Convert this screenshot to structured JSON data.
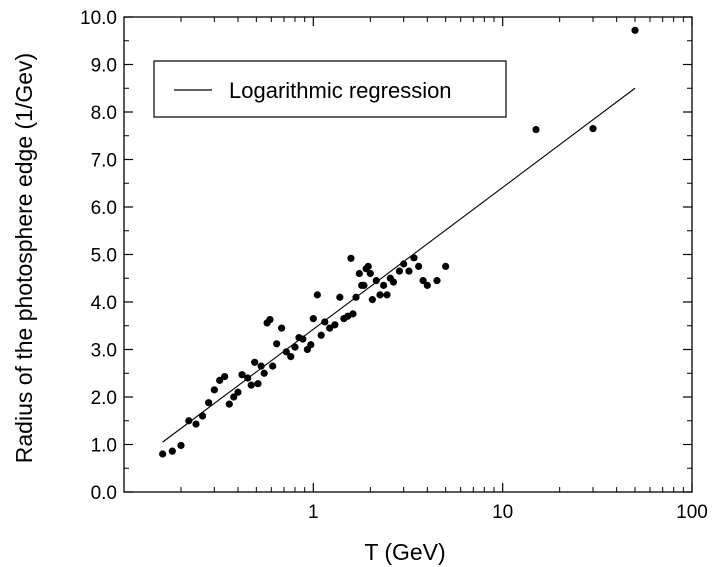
{
  "chart_data": {
    "type": "scatter",
    "title": "",
    "xlabel": "T (GeV)",
    "ylabel": "Radius of the photosphere edge (1/Gev)",
    "xscale": "log",
    "xlim": [
      0.1,
      100
    ],
    "ylim": [
      0.0,
      10.0
    ],
    "x_ticks": [
      {
        "value": 1,
        "label": "1"
      },
      {
        "value": 10,
        "label": "10"
      },
      {
        "value": 100,
        "label": "100"
      }
    ],
    "y_ticks": [
      {
        "value": 0.0,
        "label": "0.0"
      },
      {
        "value": 1.0,
        "label": "1.0"
      },
      {
        "value": 2.0,
        "label": "2.0"
      },
      {
        "value": 3.0,
        "label": "3.0"
      },
      {
        "value": 4.0,
        "label": "4.0"
      },
      {
        "value": 5.0,
        "label": "5.0"
      },
      {
        "value": 6.0,
        "label": "6.0"
      },
      {
        "value": 7.0,
        "label": "7.0"
      },
      {
        "value": 8.0,
        "label": "8.0"
      },
      {
        "value": 9.0,
        "label": "9.0"
      },
      {
        "value": 10.0,
        "label": "10.0"
      }
    ],
    "grid": false,
    "legend": {
      "placement": "top-left",
      "entries": [
        {
          "label": "Logarithmic regression",
          "kind": "line"
        }
      ]
    },
    "series": [
      {
        "kind": "scatter",
        "color": "#000000",
        "points": [
          [
            0.16,
            0.8
          ],
          [
            0.18,
            0.86
          ],
          [
            0.2,
            0.98
          ],
          [
            0.22,
            1.5
          ],
          [
            0.24,
            1.43
          ],
          [
            0.26,
            1.6
          ],
          [
            0.28,
            1.88
          ],
          [
            0.3,
            2.15
          ],
          [
            0.32,
            2.35
          ],
          [
            0.34,
            2.43
          ],
          [
            0.36,
            1.85
          ],
          [
            0.38,
            2.0
          ],
          [
            0.4,
            2.1
          ],
          [
            0.42,
            2.47
          ],
          [
            0.45,
            2.4
          ],
          [
            0.47,
            2.25
          ],
          [
            0.49,
            2.73
          ],
          [
            0.51,
            2.28
          ],
          [
            0.53,
            2.65
          ],
          [
            0.55,
            2.5
          ],
          [
            0.57,
            3.56
          ],
          [
            0.59,
            3.63
          ],
          [
            0.61,
            2.65
          ],
          [
            0.64,
            3.12
          ],
          [
            0.68,
            3.45
          ],
          [
            0.72,
            2.95
          ],
          [
            0.76,
            2.85
          ],
          [
            0.8,
            3.05
          ],
          [
            0.84,
            3.25
          ],
          [
            0.88,
            3.22
          ],
          [
            0.93,
            3.0
          ],
          [
            0.97,
            3.1
          ],
          [
            1.0,
            3.65
          ],
          [
            1.05,
            4.15
          ],
          [
            1.1,
            3.3
          ],
          [
            1.15,
            3.58
          ],
          [
            1.22,
            3.45
          ],
          [
            1.3,
            3.52
          ],
          [
            1.38,
            4.1
          ],
          [
            1.45,
            3.65
          ],
          [
            1.52,
            3.7
          ],
          [
            1.58,
            4.92
          ],
          [
            1.62,
            3.75
          ],
          [
            1.68,
            4.1
          ],
          [
            1.75,
            4.6
          ],
          [
            1.8,
            4.35
          ],
          [
            1.85,
            4.35
          ],
          [
            1.9,
            4.7
          ],
          [
            1.95,
            4.75
          ],
          [
            2.0,
            4.6
          ],
          [
            2.05,
            4.05
          ],
          [
            2.15,
            4.45
          ],
          [
            2.25,
            4.15
          ],
          [
            2.35,
            4.35
          ],
          [
            2.45,
            4.15
          ],
          [
            2.55,
            4.5
          ],
          [
            2.65,
            4.42
          ],
          [
            2.85,
            4.65
          ],
          [
            3.0,
            4.8
          ],
          [
            3.2,
            4.65
          ],
          [
            3.4,
            4.93
          ],
          [
            3.6,
            4.75
          ],
          [
            3.8,
            4.45
          ],
          [
            4.0,
            4.35
          ],
          [
            4.5,
            4.45
          ],
          [
            5.0,
            4.75
          ],
          [
            15.0,
            7.63
          ],
          [
            30.0,
            7.65
          ],
          [
            50.0,
            9.72
          ]
        ]
      },
      {
        "kind": "line",
        "name": "Logarithmic regression",
        "color": "#000000",
        "x": [
          0.16,
          50
        ],
        "y": [
          1.05,
          8.5
        ]
      }
    ]
  }
}
